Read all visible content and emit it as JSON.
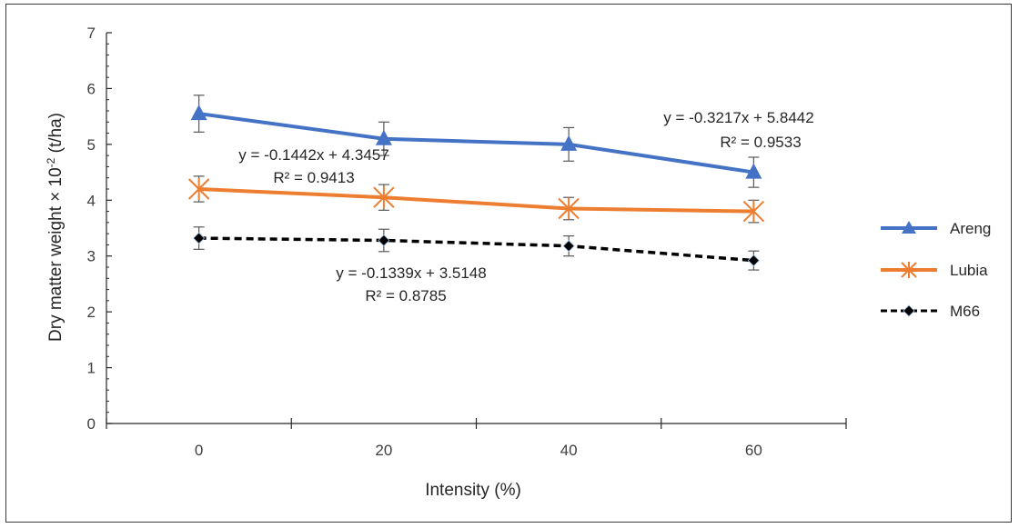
{
  "chart_data": {
    "type": "line",
    "xlabel": "Intensity (%)",
    "ylabel": "Dry matter weight × 10",
    "ylabel_superscript": "-2",
    "ylabel_unit": " (t/ha)",
    "x": [
      0,
      20,
      40,
      60
    ],
    "xlim": [
      -10,
      70
    ],
    "ylim": [
      0,
      7
    ],
    "xticks": [
      0,
      20,
      40,
      60
    ],
    "yticks": [
      0,
      1,
      2,
      3,
      4,
      5,
      6,
      7
    ],
    "grid": false,
    "legend_position": "right",
    "series": [
      {
        "name": "Areng",
        "values": [
          5.55,
          5.1,
          5.0,
          4.5
        ],
        "error": [
          0.33,
          0.3,
          0.3,
          0.27
        ],
        "color": "#4472C4",
        "marker": "triangle",
        "dash": "solid"
      },
      {
        "name": "Lubia",
        "values": [
          4.2,
          4.05,
          3.85,
          3.8
        ],
        "error": [
          0.23,
          0.23,
          0.2,
          0.2
        ],
        "color": "#ED7D31",
        "marker": "asterisk",
        "dash": "solid"
      },
      {
        "name": "M66",
        "values": [
          3.32,
          3.28,
          3.18,
          2.92
        ],
        "error": [
          0.2,
          0.2,
          0.18,
          0.17
        ],
        "color": "#000000",
        "marker": "diamond",
        "dash": "dashed"
      }
    ],
    "annotations": [
      {
        "id": "areng",
        "line1": "y = -0.3217x + 5.8442",
        "line2": "R² = 0.9533"
      },
      {
        "id": "lubia",
        "line1": "y = -0.1442x + 4.3457",
        "line2": "R² = 0.9413"
      },
      {
        "id": "m66",
        "line1": "y = -0.1339x + 3.5148",
        "line2": "R² = 0.8785"
      }
    ]
  }
}
